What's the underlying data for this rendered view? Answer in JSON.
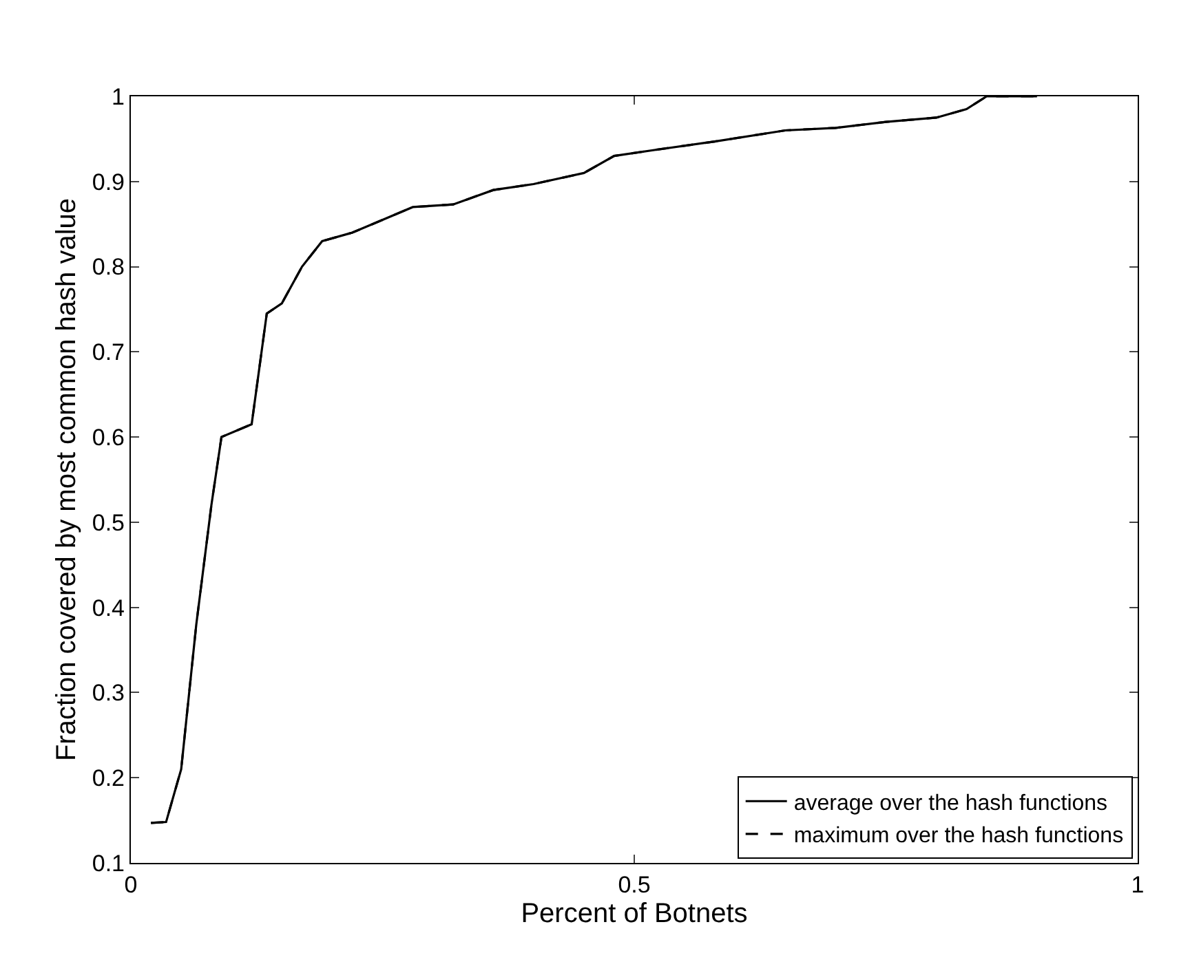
{
  "chart_data": {
    "type": "line",
    "xlabel": "Percent of Botnets",
    "ylabel": "Fraction covered by most common hash value",
    "x": [
      0.02,
      0.035,
      0.05,
      0.065,
      0.08,
      0.09,
      0.12,
      0.135,
      0.15,
      0.17,
      0.19,
      0.22,
      0.25,
      0.28,
      0.32,
      0.36,
      0.4,
      0.45,
      0.48,
      0.52,
      0.58,
      0.65,
      0.7,
      0.75,
      0.8,
      0.83,
      0.85,
      0.9
    ],
    "series": [
      {
        "name": "average over the hash functions",
        "color": "#000000",
        "line_style": "solid",
        "values": [
          0.147,
          0.148,
          0.21,
          0.38,
          0.52,
          0.6,
          0.615,
          0.745,
          0.757,
          0.8,
          0.83,
          0.84,
          0.855,
          0.87,
          0.873,
          0.89,
          0.897,
          0.91,
          0.93,
          0.937,
          0.947,
          0.96,
          0.963,
          0.97,
          0.975,
          0.985,
          1.0,
          1.0
        ]
      },
      {
        "name": "maximum over the hash functions",
        "color": "#000000",
        "line_style": "dashed",
        "values": [
          0.147,
          0.148,
          0.21,
          0.38,
          0.52,
          0.6,
          0.615,
          0.745,
          0.757,
          0.8,
          0.83,
          0.84,
          0.855,
          0.87,
          0.873,
          0.89,
          0.897,
          0.91,
          0.93,
          0.937,
          0.947,
          0.96,
          0.963,
          0.97,
          0.975,
          0.985,
          1.0,
          1.0
        ]
      }
    ],
    "xlim": [
      0,
      1
    ],
    "xticks": [
      0,
      0.5,
      1
    ],
    "ylim": [
      0.1,
      1
    ],
    "yticks": [
      0.1,
      0.2,
      0.3,
      0.4,
      0.5,
      0.6,
      0.7,
      0.8,
      0.9,
      1
    ],
    "legend": "bottom right",
    "marker": "none"
  }
}
